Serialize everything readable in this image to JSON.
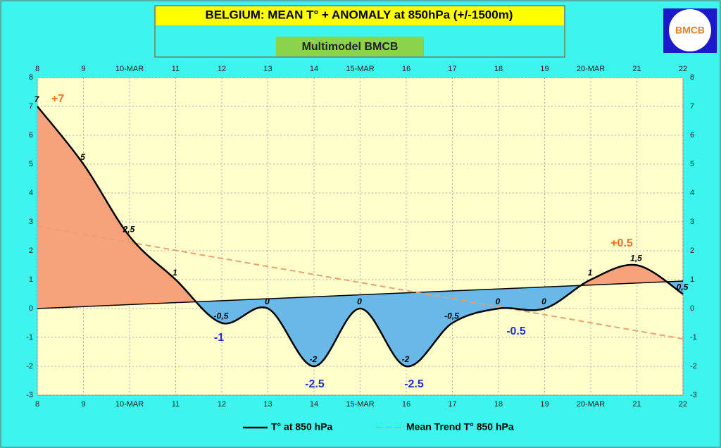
{
  "chart_data": {
    "type": "line",
    "title": "BELGIUM:  MEAN T° + ANOMALY at 850hPa (+/-1500m)",
    "subtitle": "Multimodel BMCB",
    "logo_text": "BMCB",
    "x": [
      8,
      9,
      10,
      11,
      12,
      13,
      14,
      15,
      16,
      17,
      18,
      19,
      20,
      21,
      22
    ],
    "series": [
      {
        "name": "T° at 850 hPa",
        "color": "#000000",
        "values": [
          7,
          5,
          2.5,
          1,
          -0.5,
          0,
          -2,
          0,
          -2,
          -0.5,
          0,
          0,
          1,
          1.5,
          0.5
        ],
        "value_labels": [
          "7",
          "5",
          "2,5",
          "1",
          "-0,5",
          "0",
          "-2",
          "0",
          "-2",
          "-0,5",
          "0",
          "0",
          "1",
          "1,5",
          "0,5"
        ]
      },
      {
        "name": "Mean Trend T° 850 hPa",
        "color": "#e8a070",
        "x": [
          8,
          22
        ],
        "values": [
          2.85,
          -1.05
        ]
      }
    ],
    "reference": {
      "x": [
        8,
        22
      ],
      "values": [
        0,
        0.95
      ],
      "color": "#000000"
    },
    "fill_above": "#f7a27a",
    "fill_below": "#6ab8e8",
    "annotations": [
      "+7",
      "-1",
      "-2.5",
      "-2.5",
      "-0.5",
      "+0.5"
    ],
    "xlim": [
      8,
      22
    ],
    "xticks": [
      8,
      9,
      {
        "value": 10,
        "label": "10-MAR"
      },
      11,
      12,
      13,
      14,
      {
        "value": 15,
        "label": "15-MAR"
      },
      16,
      17,
      18,
      19,
      {
        "value": 20,
        "label": "20-MAR"
      },
      21,
      22
    ],
    "ylim": [
      -3,
      8
    ],
    "yticks": [
      -3,
      -2,
      -1,
      0,
      1,
      2,
      3,
      4,
      5,
      6,
      7,
      8
    ],
    "grid": true
  }
}
